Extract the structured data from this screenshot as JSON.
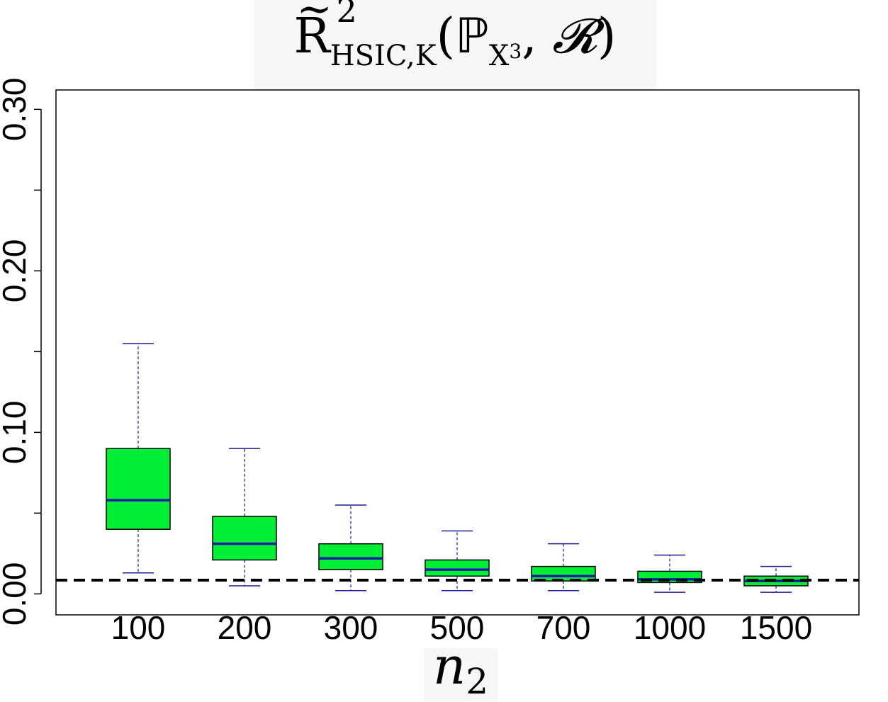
{
  "chart_data": {
    "type": "boxplot",
    "title": "R̃²HSIC,K(ℙX3, 𝓡)",
    "title_parts": {
      "main": "R",
      "tilde": "~",
      "superscript": "2",
      "subscript": "HSIC,K",
      "open": "(",
      "bb": "ℙ",
      "bb_sub": "X",
      "bb_subsub": "3",
      "comma": ", ",
      "cal": "𝓡",
      "close": ")"
    },
    "xlabel": "n",
    "xlabel_sub": "2",
    "ylabel": "",
    "ylim": [
      -0.013,
      0.312
    ],
    "yticks": [
      0.0,
      0.05,
      0.1,
      0.15,
      0.2,
      0.25,
      0.3
    ],
    "ytick_labels": [
      "0.00",
      "",
      "0.10",
      "",
      "0.20",
      "",
      "0.30"
    ],
    "categories": [
      "100",
      "200",
      "300",
      "500",
      "700",
      "1000",
      "1500"
    ],
    "boxes": [
      {
        "whisker_low": 0.013,
        "q1": 0.04,
        "median": 0.058,
        "q3": 0.09,
        "whisker_high": 0.155
      },
      {
        "whisker_low": 0.005,
        "q1": 0.021,
        "median": 0.031,
        "q3": 0.048,
        "whisker_high": 0.09
      },
      {
        "whisker_low": 0.002,
        "q1": 0.015,
        "median": 0.022,
        "q3": 0.031,
        "whisker_high": 0.055
      },
      {
        "whisker_low": 0.002,
        "q1": 0.011,
        "median": 0.015,
        "q3": 0.021,
        "whisker_high": 0.039
      },
      {
        "whisker_low": 0.002,
        "q1": 0.008,
        "median": 0.011,
        "q3": 0.017,
        "whisker_high": 0.031
      },
      {
        "whisker_low": 0.001,
        "q1": 0.007,
        "median": 0.009,
        "q3": 0.014,
        "whisker_high": 0.024
      },
      {
        "whisker_low": 0.001,
        "q1": 0.005,
        "median": 0.008,
        "q3": 0.011,
        "whisker_high": 0.017
      }
    ],
    "reference_line": 0.0085,
    "colors": {
      "box_fill": "#00ee33",
      "box_border": "#000000",
      "median": "#1a1aaa",
      "whisker": "#1a1a9a",
      "reference": "#000000"
    }
  }
}
